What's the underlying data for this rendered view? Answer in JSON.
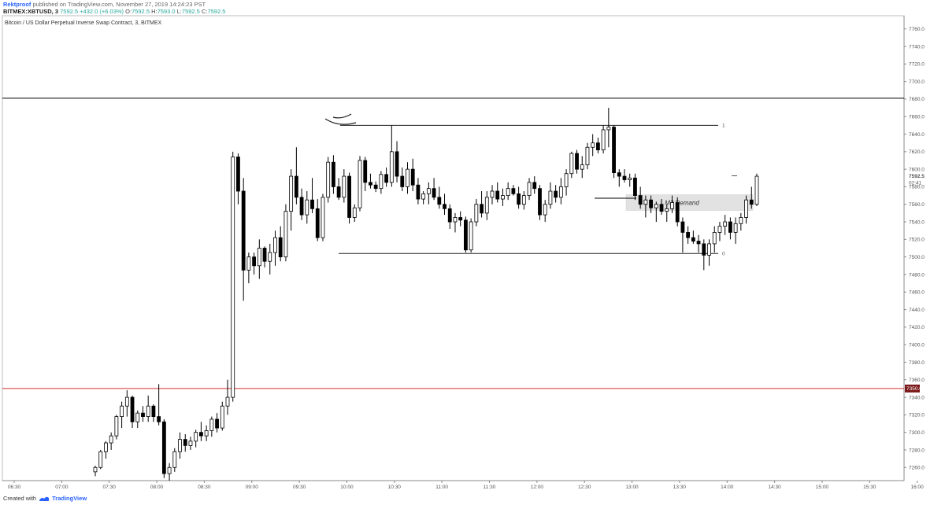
{
  "header": {
    "author": "Rektproof",
    "published": "published on TradingView.com, November 27, 2019 14:24:23 PST",
    "symbol": "BITMEX:XBTUSD, 3",
    "last": "7592.5",
    "change": "+432.0 (+6.03%)",
    "o_label": "O:",
    "o_value": "7592.5",
    "h_label": "H:",
    "h_value": "7593.0",
    "l_label": "L:",
    "l_value": "7592.5",
    "c_label": "C:",
    "c_value": "7592.5"
  },
  "chart_title": "Bitcoin / US Dollar Perpetual Inverse Swap Contract, 3, BITMEX",
  "footer": {
    "created_with": "Created with",
    "brand": "TradingView"
  },
  "colors": {
    "up_fill": "#ffffff",
    "down_fill": "#000000",
    "candle_border": "#000000",
    "accent_red": "#d32f2f",
    "demand_zone": "#e2e2e2",
    "brand_blue": "#2962ff"
  },
  "chart_data": {
    "type": "candlestick",
    "title": "Bitcoin / US Dollar Perpetual Inverse Swap Contract, 3, BITMEX",
    "interval": "3",
    "ylim": [
      7245,
      7775
    ],
    "y_ticks": [
      7260,
      7280,
      7300,
      7320,
      7340,
      7360,
      7380,
      7400,
      7420,
      7440,
      7460,
      7480,
      7500,
      7520,
      7540,
      7560,
      7580,
      7600,
      7620,
      7640,
      7660,
      7680,
      7700,
      7720,
      7740,
      7760
    ],
    "x_ticks": [
      "06:30",
      "07:00",
      "07:30",
      "08:00",
      "08:30",
      "09:00",
      "09:30",
      "10:00",
      "10:30",
      "11:00",
      "11:30",
      "12:00",
      "12:30",
      "13:00",
      "13:30",
      "14:00",
      "14:30",
      "15:00",
      "15:30",
      "16:00"
    ],
    "candles": [
      [
        7255,
        7262,
        7250,
        7260
      ],
      [
        7260,
        7280,
        7258,
        7278
      ],
      [
        7278,
        7290,
        7270,
        7288
      ],
      [
        7288,
        7300,
        7280,
        7296
      ],
      [
        7296,
        7320,
        7292,
        7318
      ],
      [
        7318,
        7335,
        7305,
        7330
      ],
      [
        7330,
        7348,
        7318,
        7340
      ],
      [
        7340,
        7342,
        7305,
        7312
      ],
      [
        7312,
        7325,
        7305,
        7322
      ],
      [
        7322,
        7330,
        7312,
        7318
      ],
      [
        7318,
        7342,
        7312,
        7330
      ],
      [
        7330,
        7332,
        7312,
        7318
      ],
      [
        7318,
        7355,
        7308,
        7312
      ],
      [
        7312,
        7315,
        7248,
        7253
      ],
      [
        7253,
        7265,
        7245,
        7260
      ],
      [
        7260,
        7282,
        7255,
        7278
      ],
      [
        7278,
        7300,
        7270,
        7292
      ],
      [
        7292,
        7298,
        7278,
        7285
      ],
      [
        7285,
        7295,
        7280,
        7290
      ],
      [
        7290,
        7303,
        7283,
        7300
      ],
      [
        7300,
        7312,
        7290,
        7296
      ],
      [
        7296,
        7308,
        7290,
        7302
      ],
      [
        7302,
        7318,
        7295,
        7315
      ],
      [
        7315,
        7322,
        7300,
        7305
      ],
      [
        7305,
        7335,
        7302,
        7330
      ],
      [
        7330,
        7360,
        7320,
        7340
      ],
      [
        7340,
        7620,
        7335,
        7614
      ],
      [
        7614,
        7618,
        7560,
        7575
      ],
      [
        7575,
        7590,
        7450,
        7485
      ],
      [
        7485,
        7505,
        7470,
        7500
      ],
      [
        7500,
        7505,
        7480,
        7490
      ],
      [
        7490,
        7520,
        7475,
        7510
      ],
      [
        7510,
        7512,
        7488,
        7495
      ],
      [
        7495,
        7515,
        7480,
        7505
      ],
      [
        7505,
        7530,
        7490,
        7522
      ],
      [
        7522,
        7535,
        7495,
        7500
      ],
      [
        7500,
        7560,
        7495,
        7552
      ],
      [
        7552,
        7600,
        7530,
        7592
      ],
      [
        7592,
        7625,
        7560,
        7568
      ],
      [
        7568,
        7578,
        7542,
        7548
      ],
      [
        7548,
        7575,
        7538,
        7565
      ],
      [
        7565,
        7590,
        7550,
        7555
      ],
      [
        7555,
        7566,
        7518,
        7522
      ],
      [
        7522,
        7572,
        7518,
        7568
      ],
      [
        7568,
        7614,
        7562,
        7608
      ],
      [
        7608,
        7616,
        7572,
        7580
      ],
      [
        7580,
        7590,
        7565,
        7568
      ],
      [
        7568,
        7600,
        7562,
        7592
      ],
      [
        7592,
        7596,
        7538,
        7545
      ],
      [
        7545,
        7560,
        7540,
        7556
      ],
      [
        7556,
        7615,
        7552,
        7610
      ],
      [
        7610,
        7614,
        7575,
        7585
      ],
      [
        7585,
        7595,
        7578,
        7582
      ],
      [
        7582,
        7586,
        7574,
        7578
      ],
      [
        7578,
        7598,
        7572,
        7594
      ],
      [
        7594,
        7602,
        7580,
        7585
      ],
      [
        7585,
        7650,
        7580,
        7620
      ],
      [
        7620,
        7632,
        7585,
        7592
      ],
      [
        7592,
        7602,
        7575,
        7580
      ],
      [
        7580,
        7608,
        7572,
        7600
      ],
      [
        7600,
        7612,
        7575,
        7582
      ],
      [
        7582,
        7590,
        7560,
        7566
      ],
      [
        7566,
        7575,
        7560,
        7572
      ],
      [
        7572,
        7585,
        7560,
        7578
      ],
      [
        7578,
        7590,
        7565,
        7568
      ],
      [
        7568,
        7580,
        7555,
        7560
      ],
      [
        7560,
        7572,
        7548,
        7555
      ],
      [
        7555,
        7560,
        7532,
        7540
      ],
      [
        7540,
        7550,
        7528,
        7545
      ],
      [
        7545,
        7552,
        7535,
        7542
      ],
      [
        7542,
        7546,
        7505,
        7508
      ],
      [
        7508,
        7544,
        7505,
        7540
      ],
      [
        7540,
        7566,
        7535,
        7560
      ],
      [
        7560,
        7575,
        7545,
        7550
      ],
      [
        7550,
        7575,
        7542,
        7568
      ],
      [
        7568,
        7582,
        7560,
        7575
      ],
      [
        7575,
        7585,
        7562,
        7566
      ],
      [
        7566,
        7578,
        7558,
        7570
      ],
      [
        7570,
        7585,
        7565,
        7578
      ],
      [
        7578,
        7582,
        7570,
        7572
      ],
      [
        7572,
        7580,
        7555,
        7560
      ],
      [
        7560,
        7575,
        7554,
        7570
      ],
      [
        7570,
        7590,
        7565,
        7585
      ],
      [
        7585,
        7592,
        7572,
        7578
      ],
      [
        7578,
        7582,
        7542,
        7548
      ],
      [
        7548,
        7565,
        7540,
        7560
      ],
      [
        7560,
        7585,
        7555,
        7575
      ],
      [
        7575,
        7582,
        7562,
        7568
      ],
      [
        7568,
        7590,
        7560,
        7580
      ],
      [
        7580,
        7600,
        7570,
        7595
      ],
      [
        7595,
        7620,
        7590,
        7618
      ],
      [
        7618,
        7622,
        7595,
        7600
      ],
      [
        7600,
        7615,
        7590,
        7605
      ],
      [
        7605,
        7630,
        7600,
        7625
      ],
      [
        7625,
        7640,
        7615,
        7630
      ],
      [
        7630,
        7636,
        7618,
        7622
      ],
      [
        7622,
        7650,
        7618,
        7645
      ],
      [
        7645,
        7670,
        7625,
        7648
      ],
      [
        7648,
        7650,
        7590,
        7596
      ],
      [
        7596,
        7600,
        7580,
        7592
      ],
      [
        7592,
        7600,
        7585,
        7588
      ],
      [
        7588,
        7595,
        7580,
        7590
      ],
      [
        7590,
        7595,
        7565,
        7570
      ],
      [
        7570,
        7580,
        7555,
        7560
      ],
      [
        7560,
        7570,
        7545,
        7565
      ],
      [
        7565,
        7570,
        7550,
        7556
      ],
      [
        7556,
        7563,
        7540,
        7560
      ],
      [
        7560,
        7566,
        7548,
        7552
      ],
      [
        7552,
        7560,
        7540,
        7555
      ],
      [
        7555,
        7570,
        7550,
        7562
      ],
      [
        7562,
        7568,
        7535,
        7540
      ],
      [
        7540,
        7545,
        7505,
        7528
      ],
      [
        7528,
        7535,
        7515,
        7522
      ],
      [
        7522,
        7530,
        7515,
        7518
      ],
      [
        7518,
        7525,
        7505,
        7515
      ],
      [
        7515,
        7520,
        7485,
        7502
      ],
      [
        7502,
        7520,
        7490,
        7515
      ],
      [
        7515,
        7535,
        7505,
        7528
      ],
      [
        7528,
        7540,
        7518,
        7535
      ],
      [
        7535,
        7548,
        7525,
        7540
      ],
      [
        7540,
        7545,
        7520,
        7528
      ],
      [
        7528,
        7545,
        7515,
        7538
      ],
      [
        7538,
        7550,
        7530,
        7545
      ],
      [
        7545,
        7570,
        7538,
        7565
      ],
      [
        7565,
        7580,
        7555,
        7560
      ],
      [
        7560,
        7595,
        7558,
        7592
      ]
    ],
    "levels": [
      {
        "value": 7681
      },
      {
        "value": 7350,
        "label": "7350.0"
      }
    ],
    "fib": {
      "high": 7650,
      "low": 7504,
      "label_high": "1",
      "label_low": "0"
    },
    "zone": {
      "top": 7571,
      "bottom": 7553,
      "label": "M3 Demand"
    },
    "last_price": {
      "value": 7592.5,
      "label": "7592.5",
      "countdown": "02:41"
    }
  }
}
